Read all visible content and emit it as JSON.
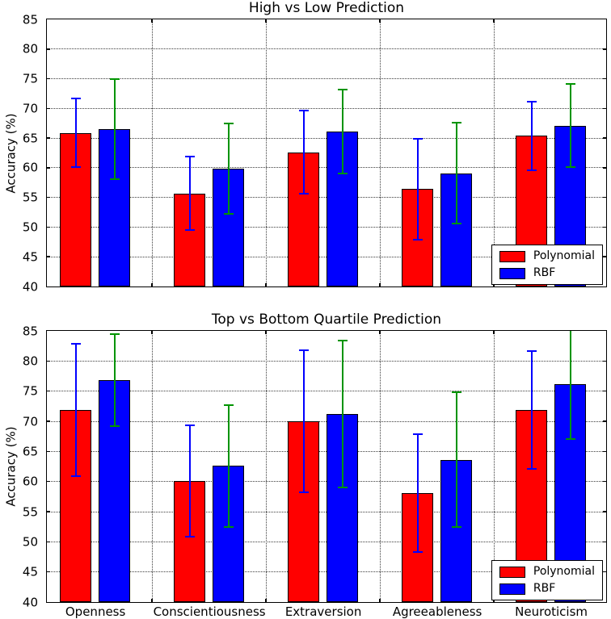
{
  "chart_data": [
    {
      "type": "bar",
      "title": "High vs Low Prediction",
      "ylabel": "Accuracy (%)",
      "ylim": [
        40,
        85
      ],
      "yticks": [
        40,
        45,
        50,
        55,
        60,
        65,
        70,
        75,
        80,
        85
      ],
      "categories": [
        "Openness",
        "Conscientiousness",
        "Extraversion",
        "Agreeableness",
        "Neuroticism"
      ],
      "show_x_tick_labels": false,
      "grid": true,
      "legend": {
        "position": "lower right",
        "entries": [
          "Polynomial",
          "RBF"
        ]
      },
      "series": [
        {
          "name": "Polynomial",
          "color": "#ff0000",
          "error_color": "#0000ff",
          "values": [
            65.9,
            55.7,
            62.6,
            56.4,
            65.4
          ],
          "errors": [
            5.8,
            6.2,
            7.0,
            8.5,
            5.8
          ]
        },
        {
          "name": "RBF",
          "color": "#0000ff",
          "error_color": "#009400",
          "values": [
            66.5,
            59.9,
            66.1,
            59.1,
            67.1
          ],
          "errors": [
            8.4,
            7.6,
            7.1,
            8.5,
            7.0
          ]
        }
      ]
    },
    {
      "type": "bar",
      "title": "Top vs Bottom Quartile Prediction",
      "ylabel": "Accuracy (%)",
      "ylim": [
        40,
        85
      ],
      "yticks": [
        40,
        45,
        50,
        55,
        60,
        65,
        70,
        75,
        80,
        85
      ],
      "categories": [
        "Openness",
        "Conscientiousness",
        "Extraversion",
        "Agreeableness",
        "Neuroticism"
      ],
      "show_x_tick_labels": true,
      "grid": true,
      "legend": {
        "position": "lower right",
        "entries": [
          "Polynomial",
          "RBF"
        ]
      },
      "series": [
        {
          "name": "Polynomial",
          "color": "#ff0000",
          "error_color": "#0000ff",
          "values": [
            71.9,
            60.1,
            70.0,
            58.1,
            71.9
          ],
          "errors": [
            11.0,
            9.2,
            11.8,
            9.8,
            9.8
          ]
        },
        {
          "name": "RBF",
          "color": "#0000ff",
          "error_color": "#009400",
          "values": [
            76.8,
            62.6,
            71.2,
            63.6,
            76.1
          ],
          "errors": [
            7.6,
            10.1,
            12.2,
            11.2,
            9.0
          ]
        }
      ]
    }
  ]
}
